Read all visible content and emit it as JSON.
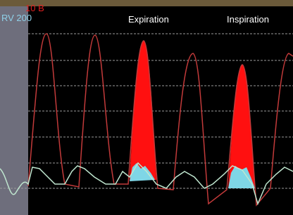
{
  "labels": {
    "lv_scale": "10 B",
    "rv_scale": "RV 200",
    "expiration": "Expiration",
    "inspiration": "Inspiration"
  }
}
